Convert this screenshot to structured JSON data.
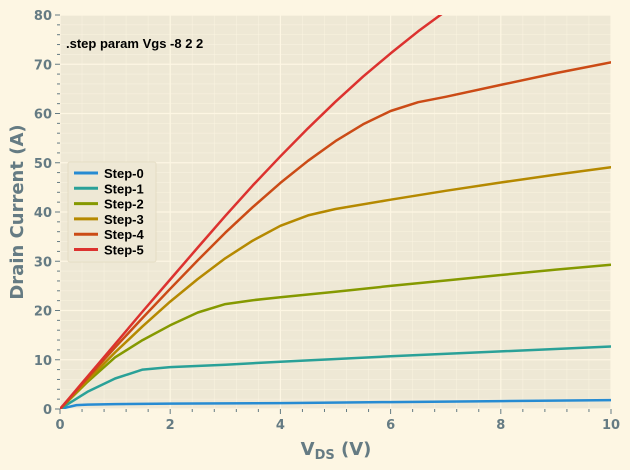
{
  "chart_data": {
    "type": "line",
    "annotation": ".step param Vgs -8 2 2",
    "xlabel_main": "V",
    "xlabel_sub": "DS",
    "xlabel_unit": " (V)",
    "ylabel": "Drain Current (A)",
    "xlim": [
      0,
      10
    ],
    "ylim": [
      0,
      80
    ],
    "xticks": [
      0,
      2,
      4,
      6,
      8,
      10
    ],
    "yticks": [
      0,
      10,
      20,
      30,
      40,
      50,
      60,
      70,
      80
    ],
    "grid": true,
    "legend_position": "center-left",
    "colors": {
      "background": "#fdf6e3",
      "plot_background": "#eee8d5",
      "grid": "#fdf6e3",
      "axis_text": "#657b83"
    },
    "series": [
      {
        "name": "Step-0",
        "color": "#268bd2",
        "points": [
          [
            0,
            0
          ],
          [
            0.3,
            0.8
          ],
          [
            0.5,
            0.9
          ],
          [
            1,
            1.0
          ],
          [
            2,
            1.1
          ],
          [
            4,
            1.2
          ],
          [
            6,
            1.4
          ],
          [
            8,
            1.6
          ],
          [
            10,
            1.8
          ]
        ]
      },
      {
        "name": "Step-1",
        "color": "#2aa198",
        "points": [
          [
            0,
            0
          ],
          [
            0.5,
            3.5
          ],
          [
            1,
            6.2
          ],
          [
            1.5,
            8.0
          ],
          [
            2,
            8.5
          ],
          [
            3,
            9.0
          ],
          [
            4,
            9.6
          ],
          [
            6,
            10.7
          ],
          [
            8,
            11.7
          ],
          [
            10,
            12.7
          ]
        ]
      },
      {
        "name": "Step-2",
        "color": "#859900",
        "points": [
          [
            0,
            0
          ],
          [
            0.5,
            5.5
          ],
          [
            1,
            10.5
          ],
          [
            1.5,
            14.0
          ],
          [
            2,
            17.0
          ],
          [
            2.5,
            19.6
          ],
          [
            3,
            21.3
          ],
          [
            3.5,
            22.1
          ],
          [
            4,
            22.7
          ],
          [
            5,
            23.8
          ],
          [
            6,
            25.0
          ],
          [
            7,
            26.1
          ],
          [
            8,
            27.2
          ],
          [
            9,
            28.3
          ],
          [
            10,
            29.3
          ]
        ]
      },
      {
        "name": "Step-3",
        "color": "#b58900",
        "points": [
          [
            0,
            0
          ],
          [
            0.5,
            5.8
          ],
          [
            1,
            11.5
          ],
          [
            1.5,
            16.8
          ],
          [
            2,
            21.8
          ],
          [
            2.5,
            26.4
          ],
          [
            3,
            30.6
          ],
          [
            3.5,
            34.2
          ],
          [
            4,
            37.2
          ],
          [
            4.5,
            39.3
          ],
          [
            5,
            40.6
          ],
          [
            6,
            42.5
          ],
          [
            7,
            44.3
          ],
          [
            8,
            46.0
          ],
          [
            9,
            47.6
          ],
          [
            10,
            49.1
          ]
        ]
      },
      {
        "name": "Step-4",
        "color": "#cb4b16",
        "points": [
          [
            0,
            0
          ],
          [
            0.5,
            6.3
          ],
          [
            1,
            12.5
          ],
          [
            1.5,
            18.5
          ],
          [
            2,
            24.4
          ],
          [
            2.5,
            30.2
          ],
          [
            3,
            35.8
          ],
          [
            3.5,
            41.0
          ],
          [
            4,
            45.9
          ],
          [
            4.5,
            50.4
          ],
          [
            5,
            54.4
          ],
          [
            5.5,
            57.8
          ],
          [
            6,
            60.5
          ],
          [
            6.5,
            62.3
          ],
          [
            7,
            63.4
          ],
          [
            8,
            65.8
          ],
          [
            9,
            68.2
          ],
          [
            10,
            70.4
          ]
        ]
      },
      {
        "name": "Step-5",
        "color": "#dc322f",
        "points": [
          [
            0,
            0
          ],
          [
            0.5,
            6.6
          ],
          [
            1,
            13.2
          ],
          [
            1.5,
            19.8
          ],
          [
            2,
            26.3
          ],
          [
            2.5,
            32.8
          ],
          [
            3,
            39.2
          ],
          [
            3.5,
            45.4
          ],
          [
            4,
            51.3
          ],
          [
            4.5,
            57.0
          ],
          [
            5,
            62.4
          ],
          [
            5.5,
            67.5
          ],
          [
            6,
            72.2
          ],
          [
            6.5,
            76.7
          ],
          [
            7,
            80.8
          ]
        ]
      }
    ]
  }
}
